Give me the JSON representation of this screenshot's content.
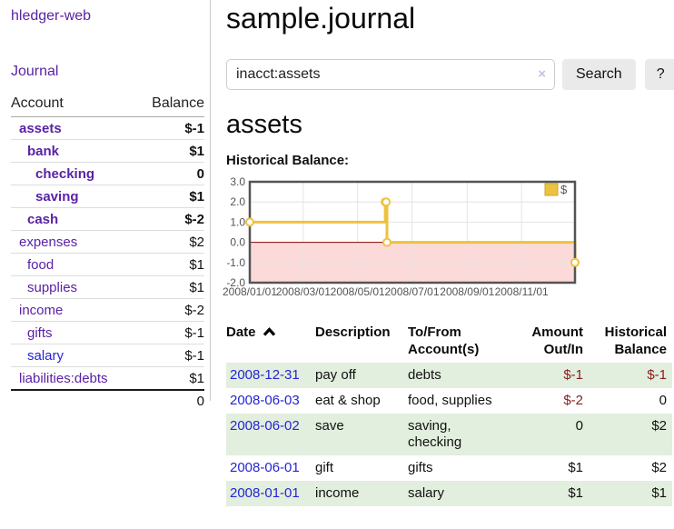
{
  "app": {
    "brand": "hledger-web",
    "nav_journal": "Journal"
  },
  "sidebar": {
    "columns": [
      "Account",
      "Balance"
    ],
    "accounts": [
      {
        "name": "assets",
        "indent": 0,
        "balance": "$-1",
        "bold": true,
        "neg": "strong"
      },
      {
        "name": "bank",
        "indent": 1,
        "balance": "$1",
        "bold": true
      },
      {
        "name": "checking",
        "indent": 2,
        "balance": "0",
        "bold": true
      },
      {
        "name": "saving",
        "indent": 2,
        "balance": "$1",
        "bold": true
      },
      {
        "name": "cash",
        "indent": 1,
        "balance": "$-2",
        "bold": true,
        "neg": "strong"
      },
      {
        "name": "expenses",
        "indent": 0,
        "balance": "$2"
      },
      {
        "name": "food",
        "indent": 1,
        "balance": "$1"
      },
      {
        "name": "supplies",
        "indent": 1,
        "balance": "$1"
      },
      {
        "name": "income",
        "indent": 0,
        "balance": "$-2",
        "neg": "soft"
      },
      {
        "name": "gifts",
        "indent": 1,
        "balance": "$-1",
        "neg": "soft"
      },
      {
        "name": "salary",
        "indent": 1,
        "balance": "$-1",
        "neg": "soft",
        "blue": true
      },
      {
        "name": "liabilities:debts",
        "indent": 0,
        "balance": "$1"
      }
    ],
    "total": "0"
  },
  "header": {
    "title": "sample.journal"
  },
  "search": {
    "value": "inacct:assets",
    "clear_icon": "×",
    "button_label": "Search",
    "help_label": "?"
  },
  "account_page": {
    "title": "assets",
    "chart_label": "Historical Balance:"
  },
  "chart_data": {
    "type": "line",
    "step": true,
    "title": "Historical Balance",
    "xlim": [
      "2008-01-01",
      "2008-12-31"
    ],
    "ylim": [
      -2,
      3
    ],
    "x_ticks": [
      "2008/01/01",
      "2008/03/01",
      "2008/05/01",
      "2008/07/01",
      "2008/09/01",
      "2008/11/01"
    ],
    "y_ticks": [
      3,
      2,
      1,
      0,
      -1,
      -2
    ],
    "series": [
      {
        "name": "$",
        "color": "#edc240",
        "points": [
          [
            "2008-01-01",
            1
          ],
          [
            "2008-06-01",
            2
          ],
          [
            "2008-06-02",
            2
          ],
          [
            "2008-06-03",
            0
          ],
          [
            "2008-12-31",
            -1
          ]
        ]
      }
    ],
    "negative_region_color": "#fcdada",
    "zero_line_color": "#8b0000",
    "grid": true,
    "legend_position": "top-right"
  },
  "transactions": {
    "headers": [
      "Date",
      "Description",
      "To/From Account(s)",
      "Amount Out/In",
      "Historical Balance"
    ],
    "sort": {
      "sorted_by": "Date",
      "icon": "chevron-up"
    },
    "rows": [
      {
        "date": "2008-12-31",
        "description": "pay off",
        "accounts": "debts",
        "amount": "$-1",
        "balance": "$-1",
        "amount_neg": true,
        "balance_neg": true
      },
      {
        "date": "2008-06-03",
        "description": "eat & shop",
        "accounts": "food, supplies",
        "amount": "$-2",
        "balance": "0",
        "amount_neg": true
      },
      {
        "date": "2008-06-02",
        "description": "save",
        "accounts": "saving, checking",
        "amount": "0",
        "balance": "$2"
      },
      {
        "date": "2008-06-01",
        "description": "gift",
        "accounts": "gifts",
        "amount": "$1",
        "balance": "$2"
      },
      {
        "date": "2008-01-01",
        "description": "income",
        "accounts": "salary",
        "amount": "$1",
        "balance": "$1"
      }
    ]
  },
  "colors": {
    "link_purple": "#5a22a6",
    "link_blue": "#2525d4",
    "negative_strong": "#8b1c1c",
    "negative_soft": "#bb6b73",
    "row_green": "#e2eede",
    "chart_gold": "#edc240",
    "chart_negative_region": "#fcdada",
    "chart_zero_line": "#8b0000"
  }
}
